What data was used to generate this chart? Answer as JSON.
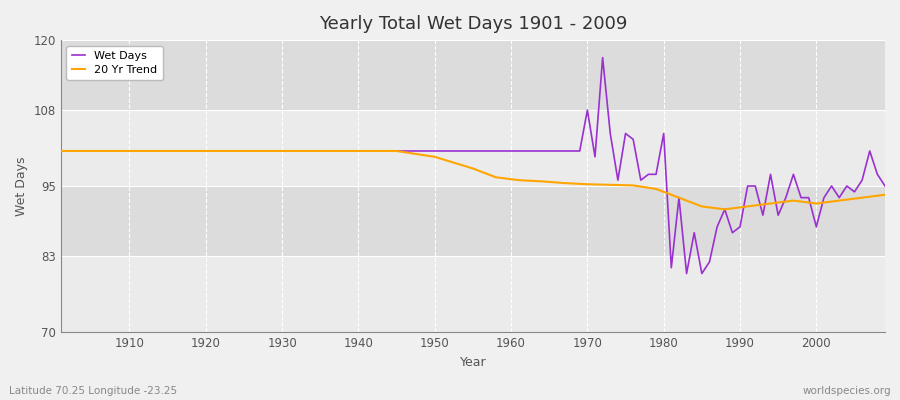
{
  "title": "Yearly Total Wet Days 1901 - 2009",
  "xlabel": "Year",
  "ylabel": "Wet Days",
  "subtitle_left": "Latitude 70.25 Longitude -23.25",
  "subtitle_right": "worldspecies.org",
  "legend_wet_days": "Wet Days",
  "legend_trend": "20 Yr Trend",
  "wet_days_color": "#9b30d0",
  "trend_color": "#ffa500",
  "ylim": [
    70,
    120
  ],
  "yticks": [
    70,
    83,
    95,
    108,
    120
  ],
  "xticks": [
    1910,
    1920,
    1930,
    1940,
    1950,
    1960,
    1970,
    1980,
    1990,
    2000
  ],
  "bg_color": "#f0f0f0",
  "plot_bg_color_light": "#ebebeb",
  "plot_bg_color_dark": "#dcdcdc",
  "wet_days": {
    "1901": 101,
    "1902": 101,
    "1903": 101,
    "1904": 101,
    "1905": 101,
    "1906": 101,
    "1907": 101,
    "1908": 101,
    "1909": 101,
    "1910": 101,
    "1911": 101,
    "1912": 101,
    "1913": 101,
    "1914": 101,
    "1915": 101,
    "1916": 101,
    "1917": 101,
    "1918": 101,
    "1919": 101,
    "1920": 101,
    "1921": 101,
    "1922": 101,
    "1923": 101,
    "1924": 101,
    "1925": 101,
    "1926": 101,
    "1927": 101,
    "1928": 101,
    "1929": 101,
    "1930": 101,
    "1931": 101,
    "1932": 101,
    "1933": 101,
    "1934": 101,
    "1935": 101,
    "1936": 101,
    "1937": 101,
    "1938": 101,
    "1939": 101,
    "1940": 101,
    "1941": 101,
    "1942": 101,
    "1943": 101,
    "1944": 101,
    "1945": 101,
    "1946": 101,
    "1947": 101,
    "1948": 101,
    "1949": 101,
    "1950": 101,
    "1951": 101,
    "1952": 101,
    "1953": 101,
    "1954": 101,
    "1955": 101,
    "1956": 101,
    "1957": 101,
    "1958": 101,
    "1959": 101,
    "1960": 101,
    "1961": 101,
    "1962": 101,
    "1963": 101,
    "1964": 101,
    "1965": 101,
    "1966": 101,
    "1967": 101,
    "1968": 101,
    "1969": 101,
    "1970": 108,
    "1971": 100,
    "1972": 117,
    "1973": 104,
    "1974": 96,
    "1975": 104,
    "1976": 103,
    "1977": 96,
    "1978": 97,
    "1979": 97,
    "1980": 104,
    "1981": 81,
    "1982": 93,
    "1983": 80,
    "1984": 87,
    "1985": 80,
    "1986": 82,
    "1987": 88,
    "1988": 91,
    "1989": 87,
    "1990": 88,
    "1991": 95,
    "1992": 95,
    "1993": 90,
    "1994": 97,
    "1995": 90,
    "1996": 93,
    "1997": 97,
    "1998": 93,
    "1999": 93,
    "2000": 88,
    "2001": 93,
    "2002": 95,
    "2003": 93,
    "2004": 95,
    "2005": 94,
    "2006": 96,
    "2007": 101,
    "2008": 97,
    "2009": 95
  },
  "trend_x": [
    1901,
    1905,
    1910,
    1915,
    1920,
    1925,
    1930,
    1935,
    1940,
    1945,
    1950,
    1955,
    1958,
    1961,
    1964,
    1967,
    1970,
    1973,
    1976,
    1979,
    1982,
    1985,
    1988,
    1991,
    1994,
    1997,
    2000,
    2003,
    2006,
    2009
  ],
  "trend_y": [
    101,
    101,
    101,
    101,
    101,
    101,
    101,
    101,
    101,
    101,
    100,
    98,
    96.5,
    96,
    95.8,
    95.5,
    95.3,
    95.2,
    95.1,
    94.5,
    93.0,
    91.5,
    91.0,
    91.5,
    92.0,
    92.5,
    92.0,
    92.5,
    93.0,
    93.5
  ]
}
